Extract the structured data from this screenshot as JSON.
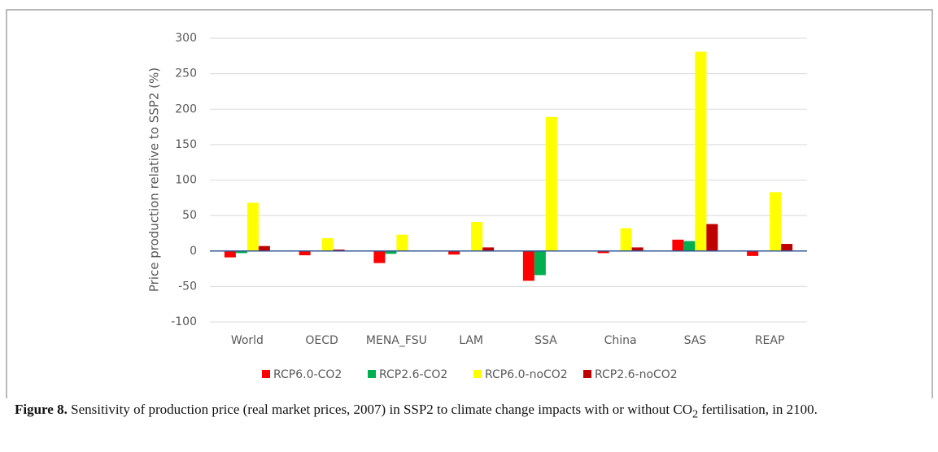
{
  "chart_data": {
    "type": "bar",
    "y_label": "Price production  relative to SSP2 (%)",
    "categories": [
      "World",
      "OECD",
      "MENA_FSU",
      "LAM",
      "SSA",
      "China",
      "SAS",
      "REAP"
    ],
    "series": [
      {
        "name": "RCP6.0-CO2",
        "color": "#ff0000",
        "values": [
          -9,
          -6,
          -17,
          -5,
          -42,
          -3,
          16,
          -7
        ]
      },
      {
        "name": "RCP2.6-CO2",
        "color": "#00b050",
        "values": [
          -3,
          0,
          -4,
          0,
          -34,
          0,
          14,
          0
        ]
      },
      {
        "name": "RCP6.0-noCO2",
        "color": "#ffff00",
        "values": [
          68,
          18,
          23,
          41,
          189,
          32,
          281,
          83
        ]
      },
      {
        "name": "RCP2.6-noCO2",
        "color": "#c00000",
        "values": [
          7,
          2,
          0,
          5,
          0,
          5,
          38,
          10
        ]
      }
    ],
    "ylim": [
      -100,
      300
    ],
    "yticks": [
      -100,
      -50,
      0,
      50,
      100,
      150,
      200,
      250,
      300
    ],
    "grid": true,
    "legend": "bottom"
  },
  "caption": {
    "label": "Figure 8.",
    "text_before": " Sensitivity of production price (real market prices, 2007) in SSP2 to climate change impacts with or without CO",
    "subscript": "2",
    "text_after": " fertilisation, in 2100."
  }
}
